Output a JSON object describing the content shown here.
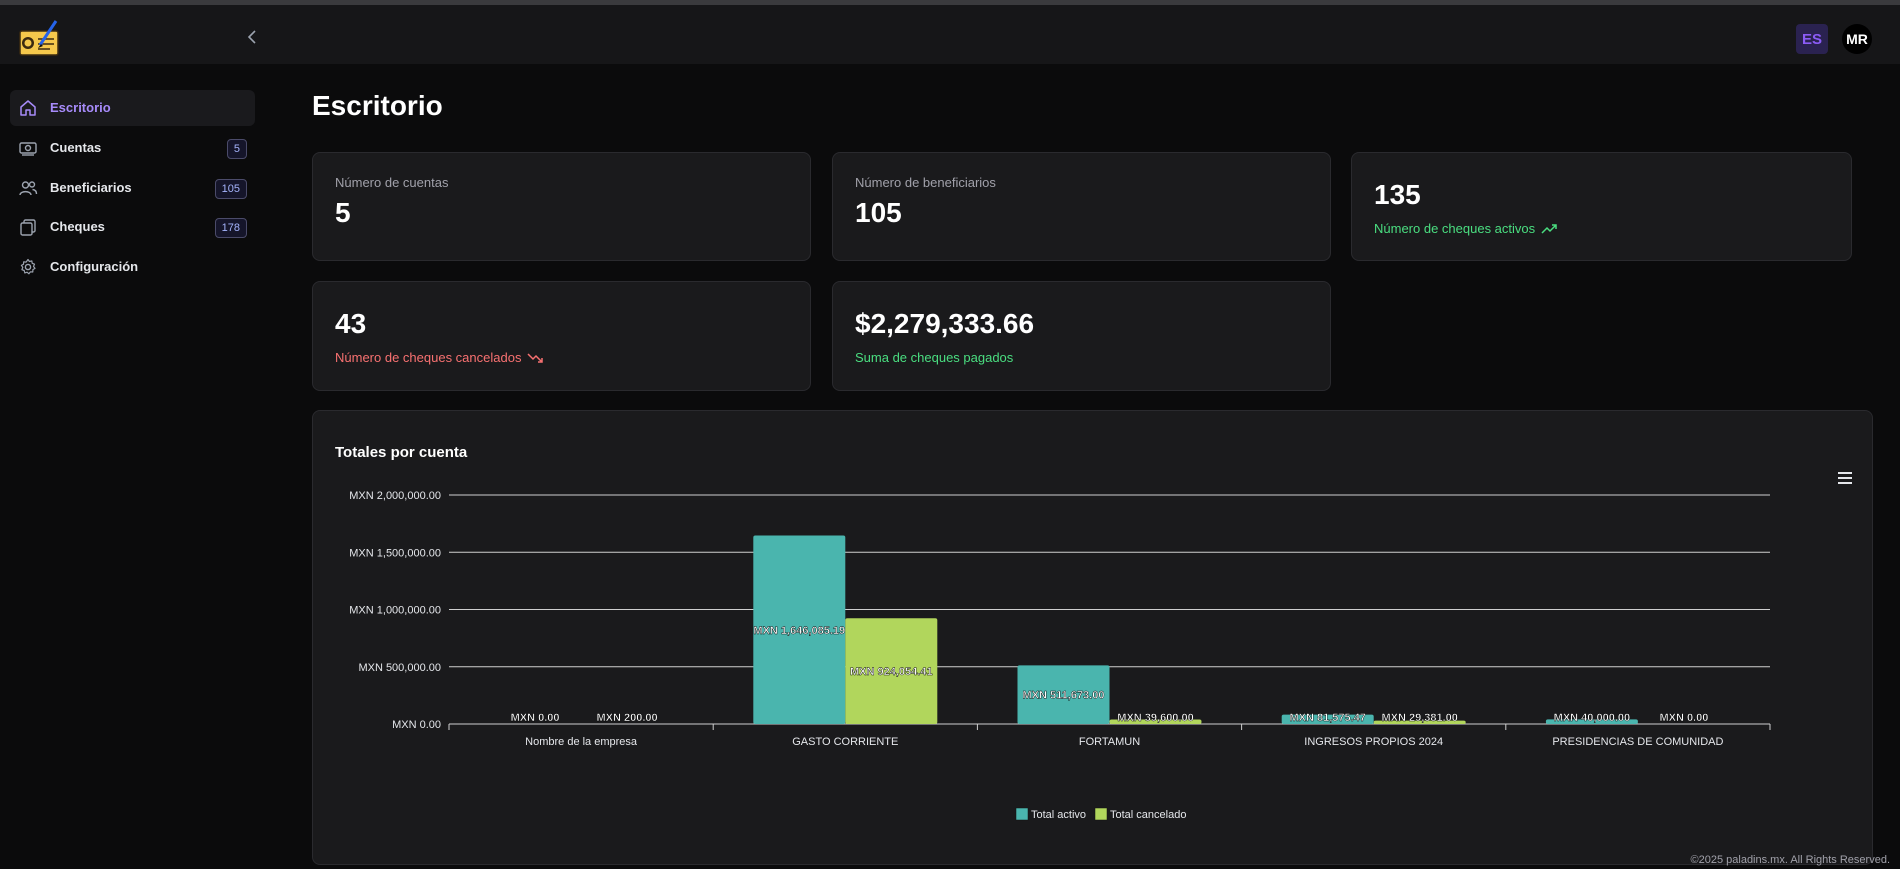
{
  "header": {
    "language": "ES",
    "user_initials": "MR"
  },
  "sidebar": {
    "items": [
      {
        "label": "Escritorio",
        "icon": "home-icon",
        "badge": null,
        "active": true
      },
      {
        "label": "Cuentas",
        "icon": "banknote-icon",
        "badge": "5",
        "active": false
      },
      {
        "label": "Beneficiarios",
        "icon": "users-icon",
        "badge": "105",
        "active": false
      },
      {
        "label": "Cheques",
        "icon": "clipboard-icon",
        "badge": "178",
        "active": false
      },
      {
        "label": "Configuración",
        "icon": "gear-icon",
        "badge": null,
        "active": false
      }
    ]
  },
  "page": {
    "title": "Escritorio"
  },
  "stats": {
    "accounts": {
      "label": "Número de cuentas",
      "value": "5"
    },
    "beneficiaries": {
      "label": "Número de beneficiarios",
      "value": "105"
    },
    "active_checks": {
      "value": "135",
      "label": "Número de cheques activos",
      "icon": "trending-up-icon"
    },
    "cancelled_checks": {
      "value": "43",
      "label": "Número de cheques cancelados",
      "icon": "trending-down-icon"
    },
    "paid_sum": {
      "value": "$2,279,333.66",
      "label": "Suma de cheques pagados"
    }
  },
  "colors": {
    "accent": "#8b5cf6",
    "green": "#4ade80",
    "red": "#f87171",
    "series_active": "#4ab5ae",
    "series_cancelled": "#b1d65c"
  },
  "chart_data": {
    "type": "bar",
    "title": "Totales por cuenta",
    "categories": [
      "Nombre de la empresa",
      "GASTO CORRIENTE",
      "FORTAMUN",
      "INGRESOS PROPIOS 2024",
      "PRESIDENCIAS DE COMUNIDAD"
    ],
    "series": [
      {
        "name": "Total activo",
        "values": [
          0,
          1646085.19,
          511673.0,
          81575.47,
          40000.0
        ],
        "labels": [
          "MXN 0.00",
          "MXN 1,646,085.19",
          "MXN 511,673.00",
          "MXN 81,575.47",
          "MXN 40,000.00"
        ]
      },
      {
        "name": "Total cancelado",
        "values": [
          200,
          924054.41,
          39600.0,
          29381.0,
          0
        ],
        "labels": [
          "MXN 200.00",
          "MXN 924,054.41",
          "MXN 39,600.00",
          "MXN 29,381.00",
          "MXN 0.00"
        ]
      }
    ],
    "yticks": [
      {
        "value": 0,
        "label": "MXN 0.00"
      },
      {
        "value": 500000,
        "label": "MXN 500,000.00"
      },
      {
        "value": 1000000,
        "label": "MXN 1,000,000.00"
      },
      {
        "value": 1500000,
        "label": "MXN 1,500,000.00"
      },
      {
        "value": 2000000,
        "label": "MXN 2,000,000.00"
      }
    ],
    "ylim": [
      0,
      2000000
    ],
    "grid": true,
    "legend": "bottom-center"
  },
  "footer": {
    "text": "©2025 paladins.mx. All Rights Reserved."
  }
}
